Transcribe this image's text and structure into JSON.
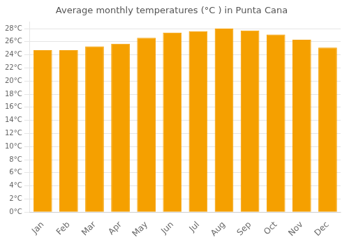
{
  "chart_data": {
    "type": "bar",
    "title": "Average monthly temperatures (°C ) in Punta Cana",
    "categories": [
      "Jan",
      "Feb",
      "Mar",
      "Apr",
      "May",
      "Jun",
      "Jul",
      "Aug",
      "Sep",
      "Oct",
      "Nov",
      "Dec"
    ],
    "values": [
      24.7,
      24.7,
      25.3,
      25.7,
      26.6,
      27.4,
      27.6,
      28.0,
      27.7,
      27.1,
      26.3,
      25.1
    ],
    "color": "#F5A000",
    "ylim": [
      0,
      29
    ],
    "yticks": [
      {
        "value": 0,
        "label": "0°C"
      },
      {
        "value": 2,
        "label": "2°C"
      },
      {
        "value": 4,
        "label": "4°C"
      },
      {
        "value": 6,
        "label": "6°C"
      },
      {
        "value": 8,
        "label": "8°C"
      },
      {
        "value": 10,
        "label": "10°C"
      },
      {
        "value": 12,
        "label": "12°C"
      },
      {
        "value": 14,
        "label": "14°C"
      },
      {
        "value": 16,
        "label": "16°C"
      },
      {
        "value": 18,
        "label": "18°C"
      },
      {
        "value": 20,
        "label": "20°C"
      },
      {
        "value": 22,
        "label": "22°C"
      },
      {
        "value": 24,
        "label": "24°C"
      },
      {
        "value": 26,
        "label": "26°C"
      },
      {
        "value": 28,
        "label": "28°C"
      }
    ],
    "grid": true
  }
}
